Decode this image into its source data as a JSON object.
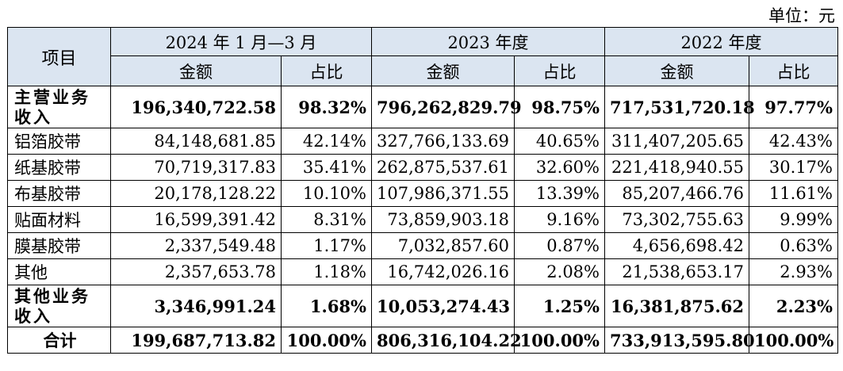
{
  "unit_label": "单位：元",
  "header": {
    "item": "项目",
    "periods": [
      "2024 年 1 月—3 月",
      "2023 年度",
      "2022 年度"
    ],
    "amount": "金额",
    "ratio": "占比"
  },
  "rows": [
    {
      "label": "主营业务收入",
      "bold": true,
      "v": [
        "196,340,722.58",
        "98.32%",
        "796,262,829.79",
        "98.75%",
        "717,531,720.18",
        "97.77%"
      ]
    },
    {
      "label": "铝箔胶带",
      "bold": false,
      "v": [
        "84,148,681.85",
        "42.14%",
        "327,766,133.69",
        "40.65%",
        "311,407,205.65",
        "42.43%"
      ]
    },
    {
      "label": "纸基胶带",
      "bold": false,
      "v": [
        "70,719,317.83",
        "35.41%",
        "262,875,537.61",
        "32.60%",
        "221,418,940.55",
        "30.17%"
      ]
    },
    {
      "label": "布基胶带",
      "bold": false,
      "v": [
        "20,178,128.22",
        "10.10%",
        "107,986,371.55",
        "13.39%",
        "85,207,466.76",
        "11.61%"
      ]
    },
    {
      "label": "贴面材料",
      "bold": false,
      "v": [
        "16,599,391.42",
        "8.31%",
        "73,859,903.18",
        "9.16%",
        "73,302,755.63",
        "9.99%"
      ]
    },
    {
      "label": "膜基胶带",
      "bold": false,
      "v": [
        "2,337,549.48",
        "1.17%",
        "7,032,857.60",
        "0.87%",
        "4,656,698.42",
        "0.63%"
      ]
    },
    {
      "label": "其他",
      "bold": false,
      "v": [
        "2,357,653.78",
        "1.18%",
        "16,742,026.16",
        "2.08%",
        "21,538,653.17",
        "2.93%"
      ]
    },
    {
      "label": "其他业务收入",
      "bold": true,
      "v": [
        "3,346,991.24",
        "1.68%",
        "10,053,274.43",
        "1.25%",
        "16,381,875.62",
        "2.23%"
      ]
    },
    {
      "label": "合计",
      "bold": true,
      "v": [
        "199,687,713.82",
        "100.00%",
        "806,316,104.22",
        "100.00%",
        "733,913,595.80",
        "100.00%"
      ]
    }
  ]
}
